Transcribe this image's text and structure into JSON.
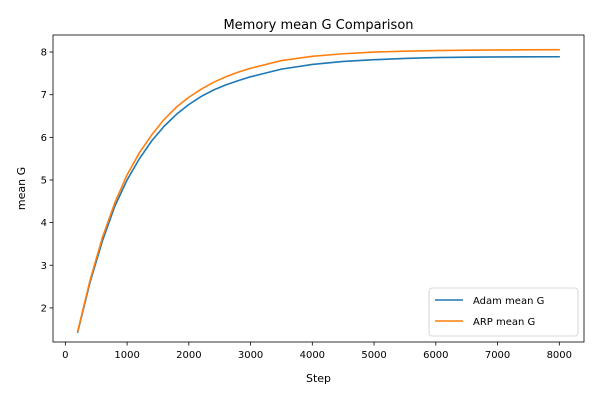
{
  "chart_data": {
    "type": "line",
    "title": "Memory mean G Comparison",
    "xlabel": "Step",
    "ylabel": "mean G",
    "xlim": [
      -200,
      8400
    ],
    "ylim": [
      1.2,
      8.4
    ],
    "xticks": [
      0,
      1000,
      2000,
      3000,
      4000,
      5000,
      6000,
      7000,
      8000
    ],
    "yticks": [
      2,
      3,
      4,
      5,
      6,
      7,
      8
    ],
    "grid": false,
    "legend_position": "lower-right",
    "colors": {
      "adam": "#1f77b4",
      "arp": "#ff7f0e"
    },
    "x": [
      200,
      400,
      600,
      800,
      1000,
      1200,
      1400,
      1600,
      1800,
      2000,
      2200,
      2400,
      2600,
      2800,
      3000,
      3500,
      4000,
      4500,
      5000,
      5500,
      6000,
      6500,
      7000,
      7500,
      8000
    ],
    "series": [
      {
        "name": "Adam mean G",
        "color": "#1f77b4",
        "values": [
          1.43,
          2.6,
          3.57,
          4.38,
          5.0,
          5.5,
          5.92,
          6.26,
          6.54,
          6.77,
          6.96,
          7.11,
          7.23,
          7.33,
          7.42,
          7.6,
          7.71,
          7.78,
          7.82,
          7.85,
          7.87,
          7.88,
          7.885,
          7.888,
          7.89
        ]
      },
      {
        "name": "ARP mean G",
        "color": "#ff7f0e",
        "values": [
          1.45,
          2.65,
          3.65,
          4.46,
          5.12,
          5.64,
          6.06,
          6.42,
          6.71,
          6.94,
          7.13,
          7.29,
          7.42,
          7.53,
          7.62,
          7.8,
          7.9,
          7.96,
          8.0,
          8.02,
          8.035,
          8.045,
          8.05,
          8.052,
          8.055
        ]
      }
    ]
  }
}
